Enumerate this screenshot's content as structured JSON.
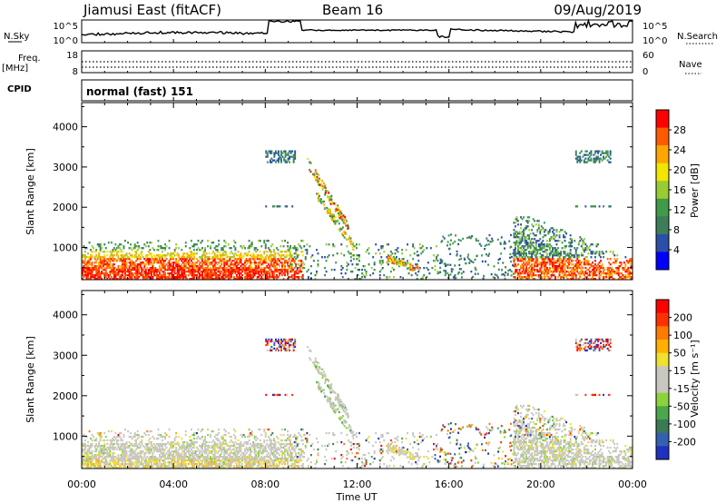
{
  "header": {
    "station": "Jiamusi East (fitACF)",
    "beam": "Beam 16",
    "date": "09/Aug/2019"
  },
  "strip_labels": {
    "nsky": "N.Sky",
    "nsky_ticks": [
      "10^5",
      "10^0"
    ],
    "nsearch": "N.Search",
    "nsearch_ticks": [
      "10^5",
      "10^0"
    ],
    "freq": "Freq.",
    "freq_unit": "[MHz]",
    "freq_ticks": [
      "18",
      "8"
    ],
    "nave": "Nave",
    "nave_ticks": [
      "60",
      "0"
    ],
    "cpid": "CPID",
    "cpid_value": "normal (fast) 151"
  },
  "chart_data": [
    {
      "type": "heatmap",
      "panel": "power",
      "xlabel": "",
      "ylabel": "Slant Range [km]",
      "xlim": [
        0,
        24
      ],
      "ylim": [
        200,
        4600
      ],
      "yticks": [
        1000,
        2000,
        3000,
        4000
      ],
      "colorbar": {
        "label": "Power [dB]",
        "ticks": [
          "4",
          "8",
          "12",
          "16",
          "20",
          "24",
          "28"
        ],
        "colors": [
          "#0000ff",
          "#2b4fa8",
          "#3c7e5a",
          "#3f9b4a",
          "#99cc33",
          "#f2e500",
          "#ffa500",
          "#ff5a00",
          "#ff0000"
        ]
      }
    },
    {
      "type": "heatmap",
      "panel": "velocity",
      "xlabel": "Time UT",
      "ylabel": "Slant Range [km]",
      "xlim": [
        0,
        24
      ],
      "ylim": [
        200,
        4600
      ],
      "xticks": [
        "00:00",
        "04:00",
        "08:00",
        "12:00",
        "16:00",
        "20:00",
        "00:00"
      ],
      "yticks": [
        1000,
        2000,
        3000,
        4000
      ],
      "colorbar": {
        "label": "Velocity [m s⁻¹]",
        "ticks": [
          "200",
          "100",
          "50",
          "15",
          "-15",
          "-50",
          "-100",
          "-200"
        ],
        "colors": [
          "#2030c0",
          "#3460b0",
          "#3a7a55",
          "#4aa84a",
          "#8cd23c",
          "#c8c8c0",
          "#c8c8c0",
          "#f0e030",
          "#ffb000",
          "#ff7a00",
          "#ff3000",
          "#ff0000"
        ]
      }
    }
  ]
}
